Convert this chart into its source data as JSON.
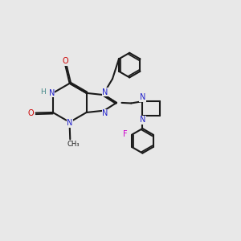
{
  "bg_color": "#e8e8e8",
  "bond_color": "#1a1a1a",
  "N_color": "#2222cc",
  "O_color": "#cc0000",
  "F_color": "#cc00cc",
  "H_color": "#448888",
  "line_width": 1.5,
  "dbo": 0.055,
  "xlim": [
    0,
    10
  ],
  "ylim": [
    0,
    10
  ]
}
